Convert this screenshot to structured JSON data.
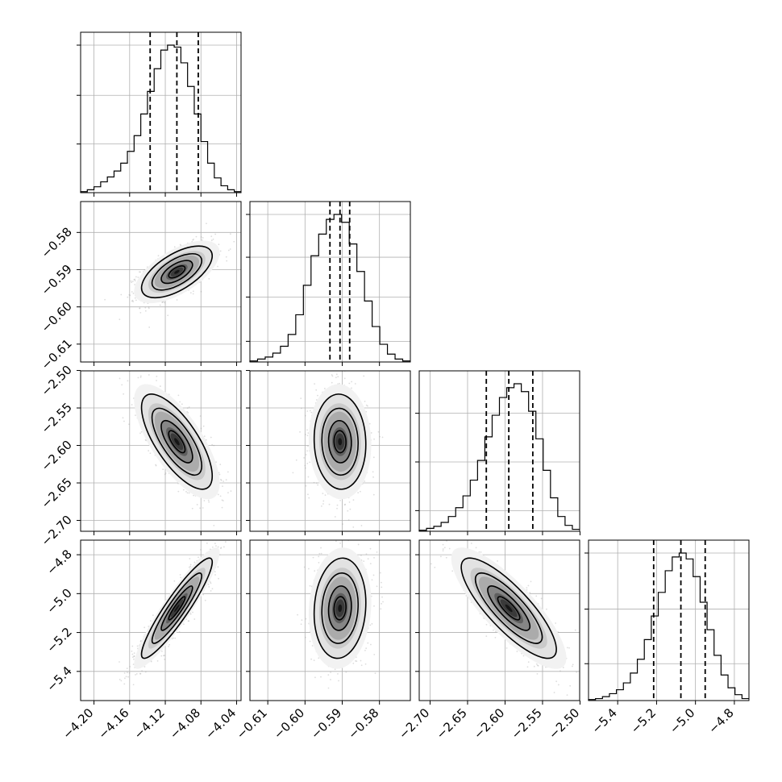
{
  "chart_data": {
    "type": "corner",
    "grid": true,
    "colors": {
      "line": "#000000",
      "grid": "#b0b0b0",
      "scatter": "#9e9e9e"
    },
    "parameters": [
      {
        "index": 0,
        "range": [
          -4.215,
          -4.035
        ],
        "ticks": [
          -4.2,
          -4.16,
          -4.12,
          -4.08,
          -4.04
        ],
        "tick_labels": [
          "−4.20",
          "−4.16",
          "−4.12",
          "−4.08",
          "−4.04"
        ],
        "quantiles": [
          -4.137,
          -4.107,
          -4.083
        ],
        "median": -4.107,
        "hist_values": [
          1,
          3,
          6,
          11,
          16,
          22,
          30,
          42,
          58,
          80,
          103,
          126,
          145,
          150,
          148,
          132,
          108,
          80,
          52,
          30,
          15,
          7,
          3,
          1
        ],
        "hist_ticks": [
          0.33,
          0.66,
          1.0
        ]
      },
      {
        "index": 1,
        "range": [
          -0.6148,
          -0.5717
        ],
        "ticks": [
          -0.61,
          -0.6,
          -0.59,
          -0.58
        ],
        "tick_labels": [
          "−0.61",
          "−0.60",
          "−0.59",
          "−0.58"
        ],
        "quantiles": [
          -0.5933,
          -0.5906,
          -0.588
        ],
        "median": -0.5906,
        "sd": 0.0035,
        "hist_values": [
          1,
          3,
          5,
          9,
          16,
          28,
          48,
          78,
          108,
          130,
          145,
          150,
          142,
          120,
          92,
          62,
          36,
          18,
          8,
          3,
          1
        ],
        "hist_ticks": [
          0.14,
          0.44,
          0.71,
          1.0
        ]
      },
      {
        "index": 2,
        "range": [
          -2.7145,
          -2.5005
        ],
        "ticks": [
          -2.7,
          -2.65,
          -2.6,
          -2.55,
          -2.5
        ],
        "tick_labels": [
          "−2.70",
          "−2.65",
          "−2.60",
          "−2.55",
          "−2.50"
        ],
        "quantiles": [
          -2.625,
          -2.595,
          -2.563
        ],
        "median": -2.595,
        "sd": 0.032,
        "hist_values": [
          1,
          3,
          5,
          9,
          15,
          24,
          36,
          52,
          72,
          96,
          118,
          136,
          146,
          150,
          142,
          122,
          94,
          62,
          34,
          15,
          6,
          2
        ],
        "hist_ticks": [
          0.14,
          0.47,
          0.8
        ]
      },
      {
        "index": 3,
        "range": [
          -5.55,
          -4.725
        ],
        "ticks": [
          -5.4,
          -5.2,
          -5.0,
          -4.8
        ],
        "tick_labels": [
          "−5.4",
          "−5.2",
          "−5.0",
          "−4.8"
        ],
        "quantiles": [
          -5.215,
          -5.075,
          -4.95
        ],
        "median": -5.075,
        "sd": 0.13,
        "hist_values": [
          1,
          2,
          4,
          7,
          11,
          18,
          28,
          42,
          62,
          86,
          110,
          132,
          146,
          150,
          144,
          126,
          100,
          72,
          46,
          26,
          13,
          6,
          2
        ],
        "hist_ticks": [
          0.25,
          0.62,
          1.0
        ]
      }
    ],
    "correlations": {
      "1_0": 0.62,
      "2_0": -0.72,
      "2_1": -0.05,
      "3_0": 0.92,
      "3_1": 0.1,
      "3_2": -0.82
    },
    "contour_levels": [
      0.86,
      0.62,
      0.32,
      0.1
    ]
  }
}
